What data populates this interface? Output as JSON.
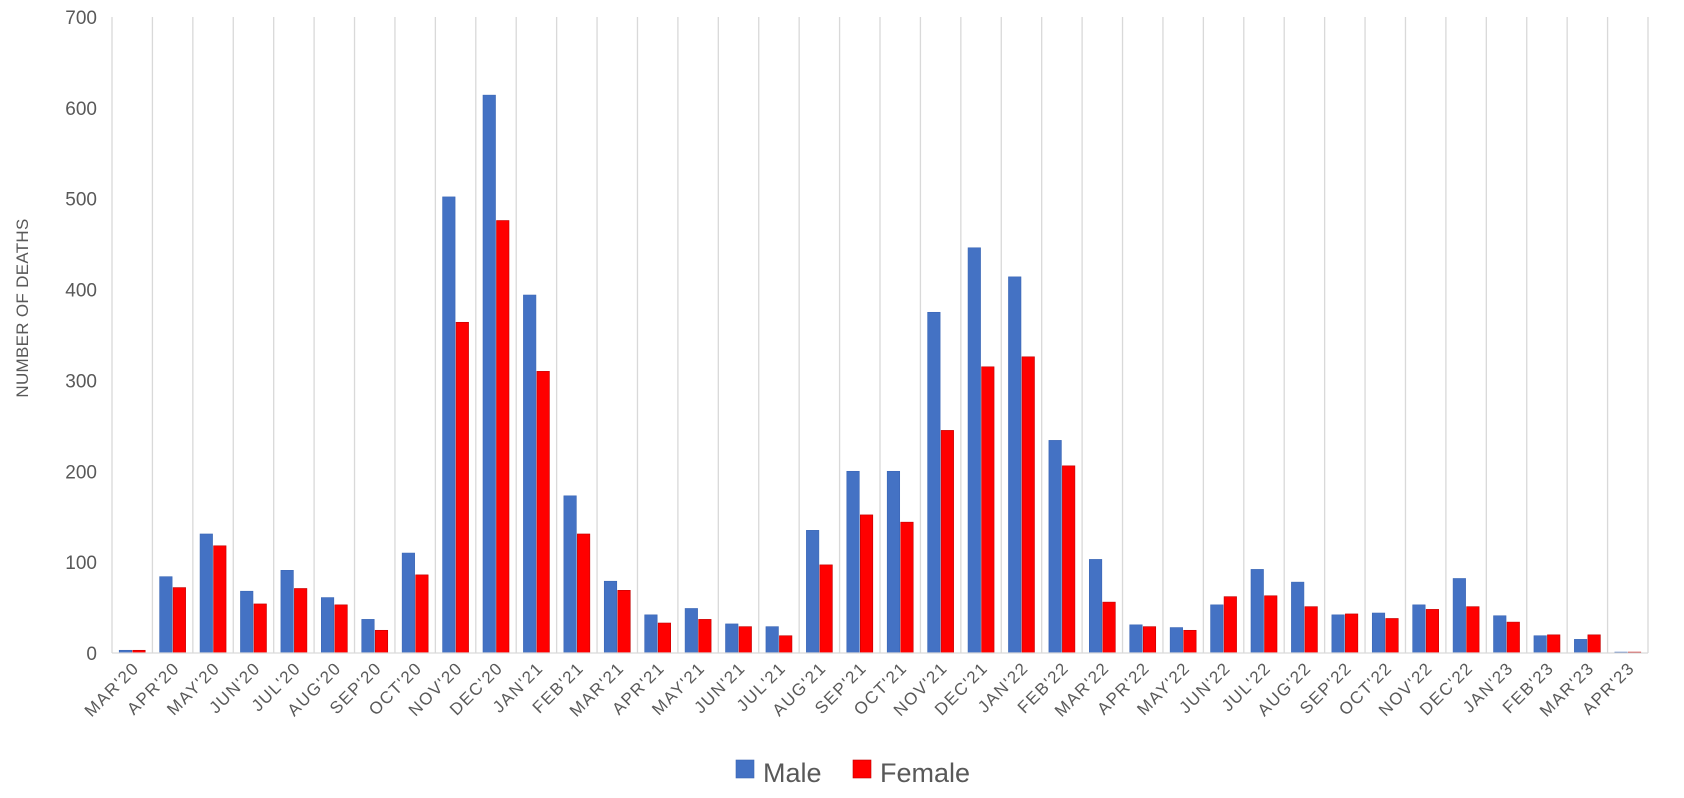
{
  "chart_data": {
    "type": "bar",
    "title": "",
    "xlabel": "",
    "ylabel": "NUMBER OF DEATHS",
    "ylim": [
      0,
      700
    ],
    "yticks": [
      0,
      100,
      200,
      300,
      400,
      500,
      600,
      700
    ],
    "grid": "vertical category gridlines",
    "legend_position": "bottom",
    "categories": [
      "MAR'20",
      "APR'20",
      "MAY'20",
      "JUN'20",
      "JUL'20",
      "AUG'20",
      "SEP'20",
      "OCT'20",
      "NOV'20",
      "DEC'20",
      "JAN'21",
      "FEB'21",
      "MAR'21",
      "APR'21",
      "MAY'21",
      "JUN'21",
      "JUL'21",
      "AUG'21",
      "SEP'21",
      "OCT'21",
      "NOV'21",
      "DEC'21",
      "JAN'22",
      "FEB'22",
      "MAR'22",
      "APR'22",
      "MAY'22",
      "JUN'22",
      "JUL'22",
      "AUG'22",
      "SEP'22",
      "OCT'22",
      "NOV'22",
      "DEC'22",
      "JAN'23",
      "FEB'23",
      "MAR'23",
      "APR'23"
    ],
    "series": [
      {
        "name": "Male",
        "color": "#4472C4",
        "values": [
          3,
          84,
          131,
          68,
          91,
          61,
          37,
          110,
          502,
          614,
          394,
          173,
          79,
          42,
          49,
          32,
          29,
          135,
          200,
          200,
          375,
          446,
          414,
          234,
          103,
          31,
          28,
          53,
          92,
          78,
          42,
          44,
          53,
          82,
          41,
          19,
          15,
          1
        ]
      },
      {
        "name": "Female",
        "color": "#FF0000",
        "values": [
          3,
          72,
          118,
          54,
          71,
          53,
          25,
          86,
          364,
          476,
          310,
          131,
          69,
          33,
          37,
          29,
          19,
          97,
          152,
          144,
          245,
          315,
          326,
          206,
          56,
          29,
          25,
          62,
          63,
          51,
          43,
          38,
          48,
          51,
          34,
          20,
          20,
          1
        ]
      }
    ]
  }
}
